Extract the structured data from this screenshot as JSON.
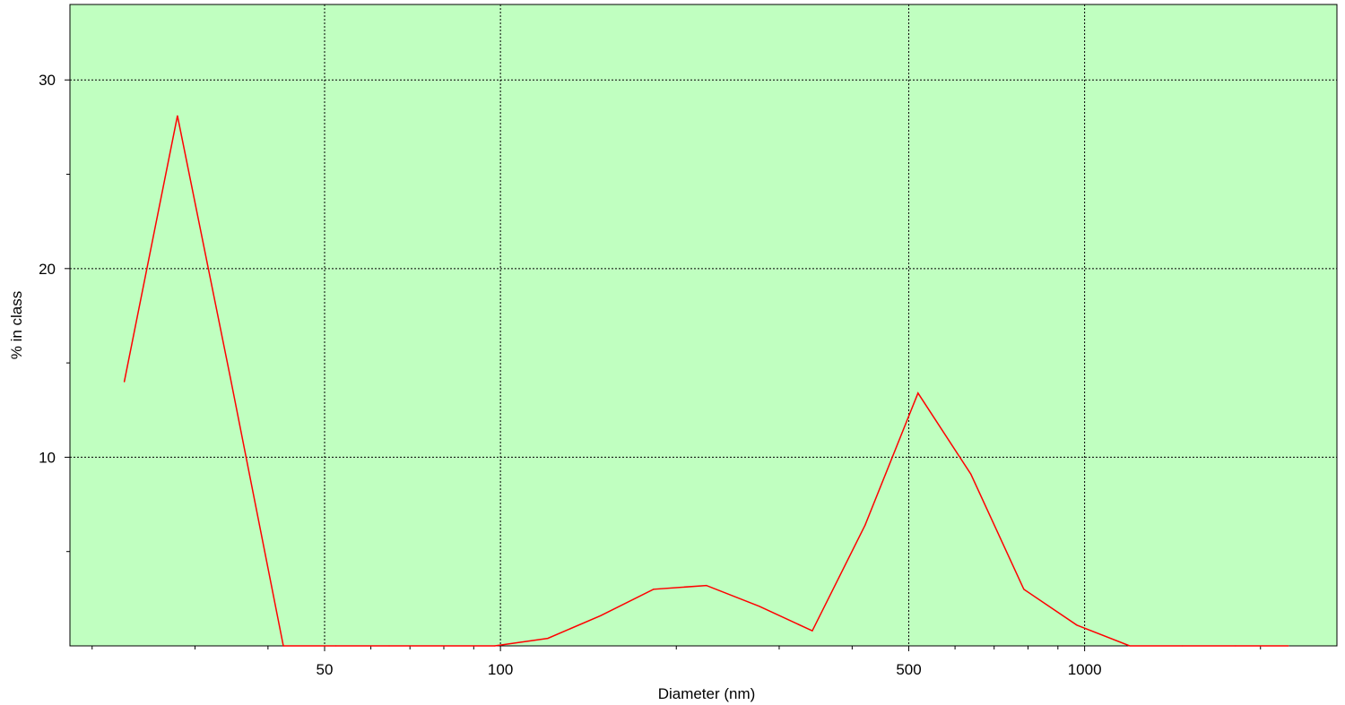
{
  "chart_data": {
    "type": "line",
    "xlabel": "Diameter (nm)",
    "ylabel": "% in class",
    "x_scale": "log",
    "xlim": [
      20,
      3000
    ],
    "ylim": [
      0,
      34
    ],
    "x_ticks": [
      50,
      100,
      500,
      1000
    ],
    "x_tick_labels": [
      "50",
      "100",
      "500",
      "1000"
    ],
    "y_ticks": [
      10,
      20,
      30
    ],
    "y_tick_labels": [
      "10",
      "20",
      "30"
    ],
    "grid": true,
    "plot_background": "#c0ffc0",
    "series": [
      {
        "color": "#ff0000",
        "x": [
          22.7,
          28.0,
          34.5,
          42.5,
          52.3,
          64.5,
          79.4,
          97.8,
          120.5,
          148.4,
          182.8,
          225.2,
          277.4,
          341.8,
          421.0,
          518.6,
          638.8,
          787.0,
          969.5,
          1194.3,
          1471.2,
          1812.4,
          2232.6
        ],
        "y": [
          14.0,
          28.1,
          14.2,
          0,
          0,
          0,
          0,
          0,
          0.4,
          1.6,
          3.0,
          3.2,
          2.1,
          0.8,
          6.4,
          13.4,
          9.1,
          3.0,
          1.1,
          0,
          0,
          0,
          0
        ]
      }
    ]
  }
}
